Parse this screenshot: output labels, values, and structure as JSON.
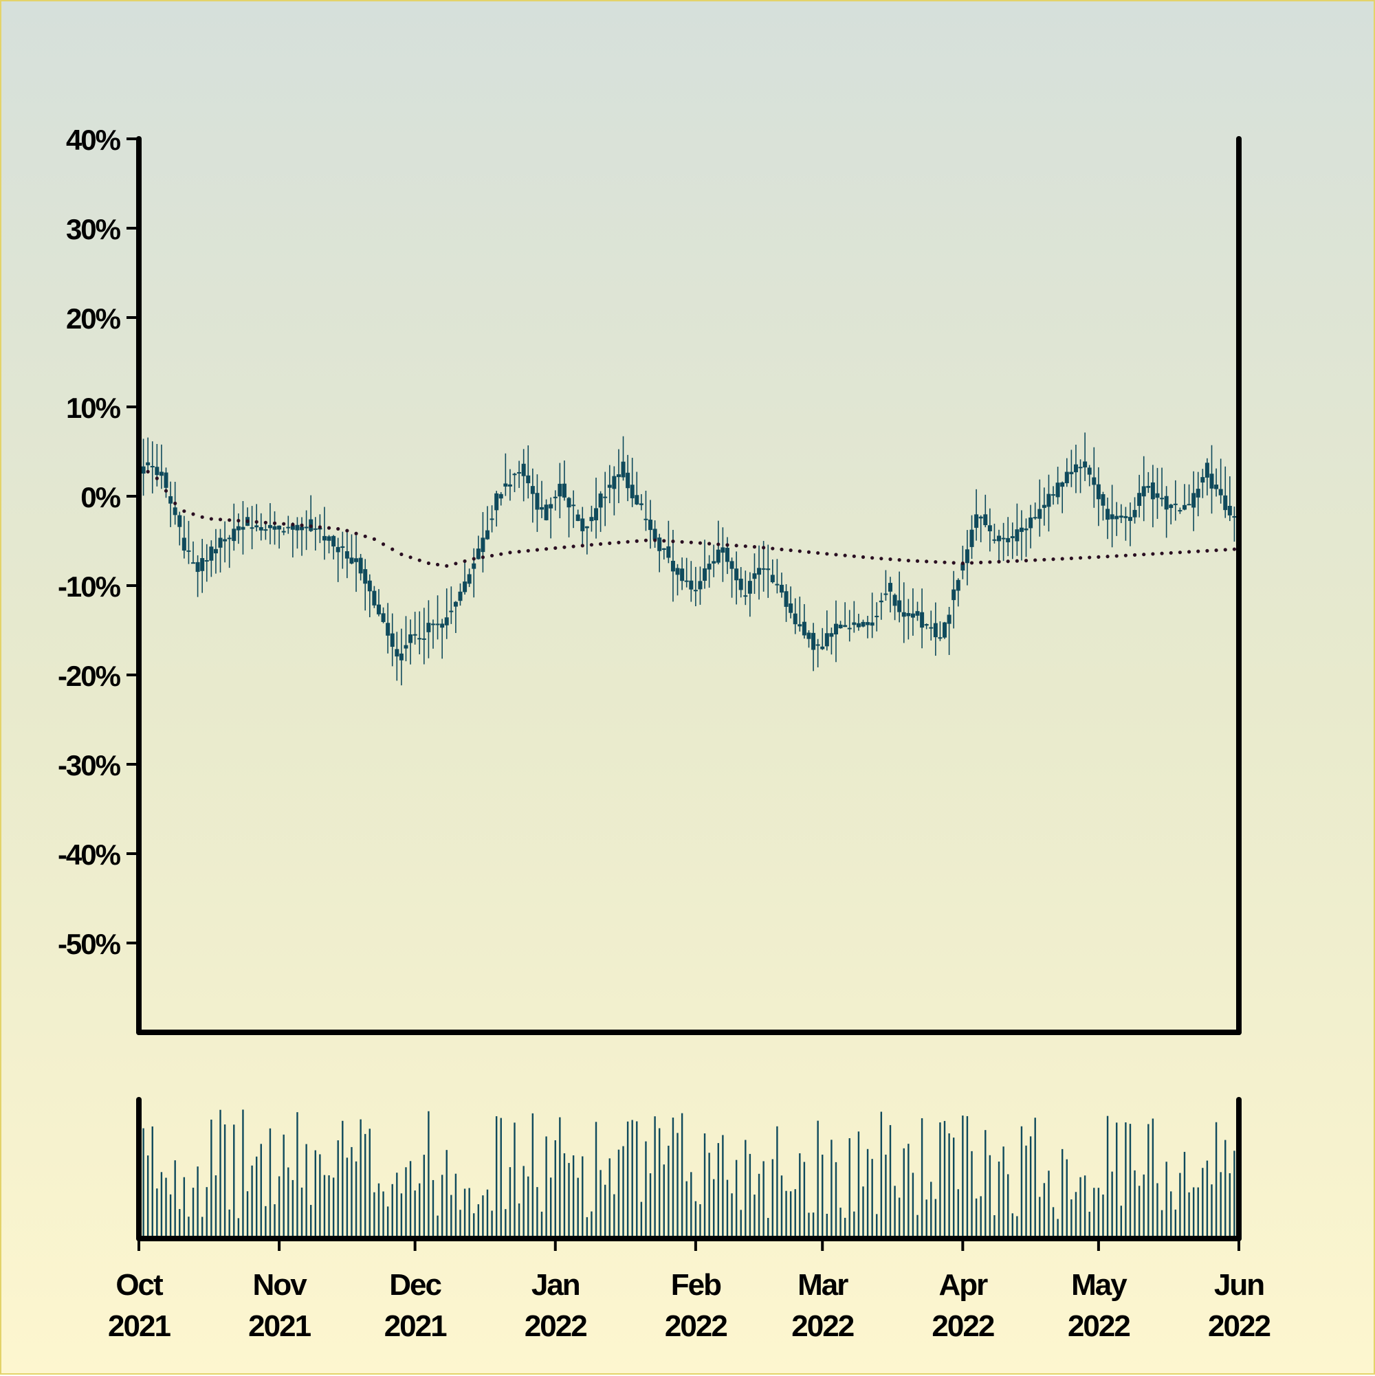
{
  "chart_data": {
    "type": "candlestick",
    "title": "",
    "xlabel": "",
    "ylabel": "",
    "y_unit": "%",
    "ylim": [
      -60,
      40
    ],
    "y_ticks": [
      40,
      30,
      20,
      10,
      0,
      -10,
      -20,
      -30,
      -40,
      -50
    ],
    "y_tick_labels": [
      "40%",
      "30%",
      "20%",
      "10%",
      "0%",
      "-10%",
      "-20%",
      "-30%",
      "-40%",
      "-50%"
    ],
    "x_range": [
      "2021-10-01",
      "2022-06-01"
    ],
    "x_ticks": [
      {
        "date": "2021-10-01",
        "month": "Oct",
        "year": "2021"
      },
      {
        "date": "2021-11-01",
        "month": "Nov",
        "year": "2021"
      },
      {
        "date": "2021-12-01",
        "month": "Dec",
        "year": "2021"
      },
      {
        "date": "2022-01-01",
        "month": "Jan",
        "year": "2022"
      },
      {
        "date": "2022-02-01",
        "month": "Feb",
        "year": "2022"
      },
      {
        "date": "2022-03-01",
        "month": "Mar",
        "year": "2022"
      },
      {
        "date": "2022-04-01",
        "month": "Apr",
        "year": "2022"
      },
      {
        "date": "2022-05-01",
        "month": "May",
        "year": "2022"
      },
      {
        "date": "2022-06-01",
        "month": "Jun",
        "year": "2022"
      }
    ],
    "price_anchors": [
      [
        "2021-10-01",
        0
      ],
      [
        "2021-10-03",
        4
      ],
      [
        "2021-10-07",
        2
      ],
      [
        "2021-10-12",
        -6
      ],
      [
        "2021-10-15",
        -8
      ],
      [
        "2021-10-20",
        -5
      ],
      [
        "2021-10-25",
        -3
      ],
      [
        "2021-11-01",
        -4
      ],
      [
        "2021-11-08",
        -3
      ],
      [
        "2021-11-15",
        -6
      ],
      [
        "2021-11-20",
        -8
      ],
      [
        "2021-11-25",
        -15
      ],
      [
        "2021-11-28",
        -18
      ],
      [
        "2021-12-01",
        -16
      ],
      [
        "2021-12-08",
        -14
      ],
      [
        "2021-12-12",
        -11
      ],
      [
        "2021-12-16",
        -6
      ],
      [
        "2021-12-20",
        0
      ],
      [
        "2021-12-25",
        3
      ],
      [
        "2021-12-30",
        -2
      ],
      [
        "2022-01-03",
        1
      ],
      [
        "2022-01-08",
        -4
      ],
      [
        "2022-01-12",
        0
      ],
      [
        "2022-01-16",
        3
      ],
      [
        "2022-01-20",
        -1
      ],
      [
        "2022-01-24",
        -5
      ],
      [
        "2022-01-29",
        -9
      ],
      [
        "2022-02-02",
        -11
      ],
      [
        "2022-02-05",
        -7
      ],
      [
        "2022-02-08",
        -6
      ],
      [
        "2022-02-12",
        -11
      ],
      [
        "2022-02-16",
        -8
      ],
      [
        "2022-02-20",
        -10
      ],
      [
        "2022-02-25",
        -15
      ],
      [
        "2022-03-01",
        -17
      ],
      [
        "2022-03-06",
        -14
      ],
      [
        "2022-03-12",
        -15
      ],
      [
        "2022-03-16",
        -10
      ],
      [
        "2022-03-19",
        -13
      ],
      [
        "2022-03-25",
        -14
      ],
      [
        "2022-03-28",
        -16
      ],
      [
        "2022-04-01",
        -9
      ],
      [
        "2022-04-05",
        -2
      ],
      [
        "2022-04-09",
        -5
      ],
      [
        "2022-04-15",
        -4
      ],
      [
        "2022-04-20",
        -1
      ],
      [
        "2022-04-28",
        4
      ],
      [
        "2022-05-04",
        -2
      ],
      [
        "2022-05-08",
        -3
      ],
      [
        "2022-05-12",
        1
      ],
      [
        "2022-05-18",
        -1
      ],
      [
        "2022-05-22",
        -1
      ],
      [
        "2022-05-25",
        3
      ],
      [
        "2022-05-28",
        1
      ],
      [
        "2022-06-01",
        -3
      ]
    ],
    "moving_average_anchors": [
      [
        "2021-10-01",
        3.5
      ],
      [
        "2021-10-05",
        2
      ],
      [
        "2021-10-10",
        -1.5
      ],
      [
        "2021-10-16",
        -2.5
      ],
      [
        "2021-10-25",
        -2.8
      ],
      [
        "2021-11-05",
        -3.2
      ],
      [
        "2021-11-15",
        -3.7
      ],
      [
        "2021-11-22",
        -4.8
      ],
      [
        "2021-11-28",
        -6.5
      ],
      [
        "2021-12-04",
        -7.5
      ],
      [
        "2021-12-08",
        -7.8
      ],
      [
        "2021-12-14",
        -7
      ],
      [
        "2021-12-22",
        -6.3
      ],
      [
        "2022-01-01",
        -5.8
      ],
      [
        "2022-01-12",
        -5.3
      ],
      [
        "2022-01-22",
        -4.9
      ],
      [
        "2022-02-01",
        -5.2
      ],
      [
        "2022-02-15",
        -5.7
      ],
      [
        "2022-03-01",
        -6.4
      ],
      [
        "2022-03-12",
        -6.9
      ],
      [
        "2022-03-20",
        -7.2
      ],
      [
        "2022-04-01",
        -7.5
      ],
      [
        "2022-04-15",
        -7.2
      ],
      [
        "2022-05-01",
        -6.8
      ],
      [
        "2022-05-15",
        -6.4
      ],
      [
        "2022-06-01",
        -5.9
      ]
    ],
    "volume_panel": {
      "type": "bar",
      "values": "relative daily volume, no axis labels"
    },
    "grid": false,
    "legend": "none",
    "colors": {
      "candle": "#0f4a5c",
      "moving_average": "#2a0f22",
      "axis": "#000000"
    }
  }
}
